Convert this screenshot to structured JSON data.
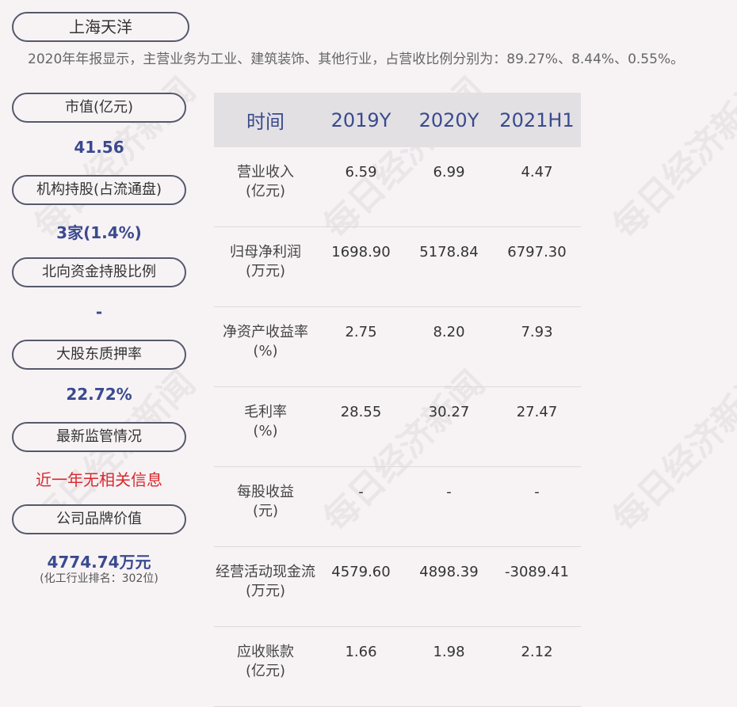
{
  "company": "上海天洋",
  "summary": "2020年年报显示，主营业务为工业、建筑装饰、其他行业，占营收比例分别为：89.27%、8.44%、0.55%。",
  "sidebar": {
    "market_cap_label": "市值(亿元)",
    "market_cap_value": "41.56",
    "inst_label": "机构持股(占流通盘)",
    "inst_value": "3家(1.4%)",
    "north_label": "北向资金持股比例",
    "north_value": "-",
    "pledge_label": "大股东质押率",
    "pledge_value": "22.72%",
    "reg_label": "最新监管情况",
    "reg_value": "近一年无相关信息",
    "brand_label": "公司品牌价值",
    "brand_value": "4774.74万元",
    "brand_sub": "(化工行业排名：302位)"
  },
  "table": {
    "headers": [
      "时间",
      "2019Y",
      "2020Y",
      "2021H1"
    ],
    "rows": [
      {
        "label1": "营业收入",
        "label2": "(亿元)",
        "v": [
          "6.59",
          "6.99",
          "4.47"
        ]
      },
      {
        "label1": "归母净利润",
        "label2": "(万元)",
        "v": [
          "1698.90",
          "5178.84",
          "6797.30"
        ]
      },
      {
        "label1": "净资产收益率",
        "label2": "(%)",
        "v": [
          "2.75",
          "8.20",
          "7.93"
        ]
      },
      {
        "label1": "毛利率",
        "label2": "(%)",
        "v": [
          "28.55",
          "30.27",
          "27.47"
        ]
      },
      {
        "label1": "每股收益",
        "label2": "(元)",
        "v": [
          "-",
          "-",
          "-"
        ]
      },
      {
        "label1": "经营活动现金流",
        "label2": "(万元)",
        "v": [
          "4579.60",
          "4898.39",
          "-3089.41"
        ]
      },
      {
        "label1": "应收账款",
        "label2": "(亿元)",
        "v": [
          "1.66",
          "1.98",
          "2.12"
        ]
      }
    ]
  },
  "watermark": "每日经济新闻"
}
